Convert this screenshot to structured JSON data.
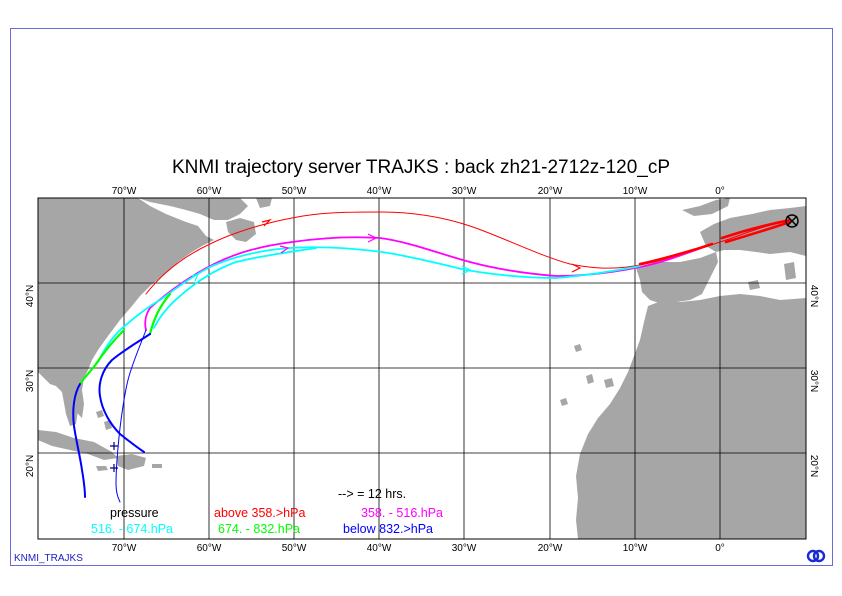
{
  "title": "KNMI trajectory server TRAJKS : back zh21-2712z-120_cP",
  "footer_label": "KNMI_TRAJKS",
  "logo_icon": "knmi-logo-icon",
  "map": {
    "lon_labels": [
      "70°W",
      "60°W",
      "50°W",
      "40°W",
      "30°W",
      "20°W",
      "10°W",
      "0°"
    ],
    "lat_labels": [
      "40°N",
      "30°N",
      "20°N"
    ],
    "colors": {
      "land": "#a6a6a6",
      "sea": "#ffffff",
      "grid": "#000000",
      "frame": "#6a6ad8"
    }
  },
  "legend": {
    "time_step": "--> = 12 hrs.",
    "pressure_label": "pressure",
    "bands": [
      {
        "label": "above 358.>hPa",
        "color": "#ff0000"
      },
      {
        "label": "358. -  516.hPa",
        "color": "#ff00ff"
      },
      {
        "label": "516. -  674.hPa",
        "color": "#00ffff"
      },
      {
        "label": "674. -  832.hPa",
        "color": "#00ff00"
      },
      {
        "label": "below 832.>hPa",
        "color": "#0000ff"
      }
    ]
  }
}
